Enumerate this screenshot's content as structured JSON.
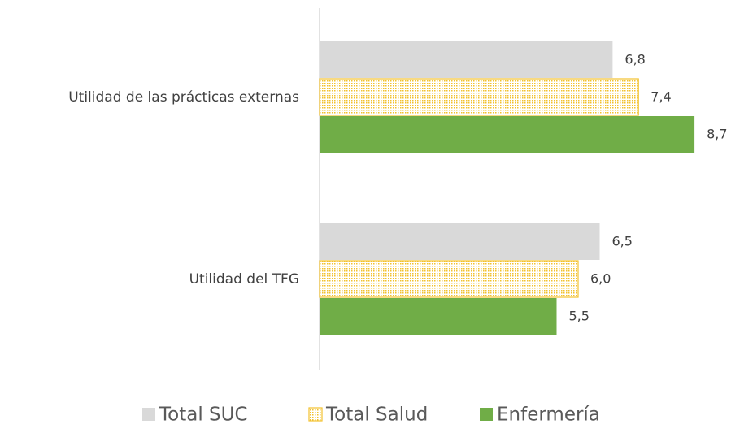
{
  "chart_data": {
    "type": "barh",
    "categories": [
      "Utilidad de las prácticas externas",
      "Utilidad del TFG"
    ],
    "series": [
      {
        "name": "Total SUC",
        "color": "#d9d9d9",
        "values": [
          6.8,
          6.5
        ],
        "value_labels": [
          "6,8",
          "6,5"
        ]
      },
      {
        "name": "Total Salud",
        "color": "#f2c12e",
        "pattern": "dots",
        "values": [
          7.4,
          6.0
        ],
        "value_labels": [
          "7,4",
          "6,0"
        ]
      },
      {
        "name": "Enfermería",
        "color": "#70ad47",
        "values": [
          8.7,
          5.5
        ],
        "value_labels": [
          "8,7",
          "5,5"
        ]
      }
    ],
    "legend": "bottom"
  }
}
